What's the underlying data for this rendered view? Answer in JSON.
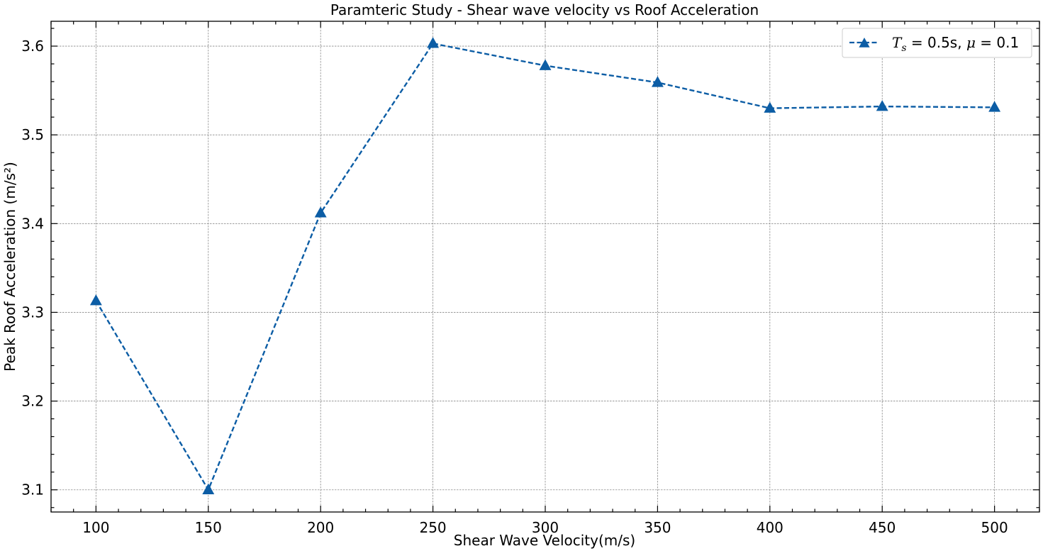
{
  "chart_data": {
    "type": "line",
    "title": "Paramteric Study - Shear wave velocity vs Roof Acceleration",
    "xlabel": "Shear Wave Velocity(m/s)",
    "ylabel": "Peak Roof Acceleration (m/s²)",
    "xlim": [
      80,
      520
    ],
    "ylim": [
      3.075,
      3.628
    ],
    "xticks": [
      100,
      150,
      200,
      250,
      300,
      350,
      400,
      450,
      500
    ],
    "yticks": [
      3.1,
      3.2,
      3.3,
      3.4,
      3.5,
      3.6
    ],
    "xtick_labels": [
      "100",
      "150",
      "200",
      "250",
      "300",
      "350",
      "400",
      "450",
      "500"
    ],
    "ytick_labels": [
      "3.1",
      "3.2",
      "3.3",
      "3.4",
      "3.5",
      "3.6"
    ],
    "grid": true,
    "legend_position": "top-right",
    "series": [
      {
        "legend": {
          "T": "T",
          "sub": "s",
          "eq1": " = 0.5s, ",
          "mu": "μ",
          "eq2": " = 0.1"
        },
        "color": "#0c5da5",
        "marker": "triangle",
        "linestyle": "dashed",
        "x": [
          100,
          150,
          200,
          250,
          300,
          350,
          400,
          450,
          500
        ],
        "y": [
          3.313,
          3.1,
          3.412,
          3.603,
          3.578,
          3.559,
          3.53,
          3.532,
          3.531
        ]
      }
    ]
  }
}
